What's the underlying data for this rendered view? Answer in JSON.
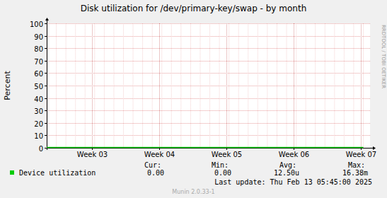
{
  "chart_data": {
    "type": "line",
    "title": "Disk utilization for /dev/primary-key/swap - by month",
    "y_label": "Percent",
    "x": [
      0,
      1,
      2,
      3,
      4,
      5,
      6,
      7,
      8,
      9,
      10,
      11,
      12,
      13,
      14,
      15,
      16,
      17,
      18,
      19,
      20,
      21,
      22,
      23,
      24,
      25,
      26,
      27,
      28,
      29,
      30,
      31,
      32,
      33
    ],
    "series": [
      {
        "name": "Device utilization",
        "color": "#00cc00",
        "values": [
          0,
          0,
          0,
          0,
          0,
          0,
          0,
          0,
          0,
          0,
          0,
          0,
          0,
          0,
          0,
          0,
          0,
          0,
          0,
          0,
          0,
          0,
          0,
          0,
          0,
          0,
          0,
          0,
          0,
          0,
          0,
          0,
          0,
          0
        ]
      }
    ],
    "xlim": [
      0,
      33.7
    ],
    "xticks": [
      {
        "value": 4.72,
        "label": "Week 03"
      },
      {
        "value": 11.72,
        "label": "Week 04"
      },
      {
        "value": 18.72,
        "label": "Week 05"
      },
      {
        "value": 25.72,
        "label": "Week 06"
      },
      {
        "value": 32.72,
        "label": "Week 07"
      }
    ],
    "ylim": [
      0,
      100
    ],
    "yticks": [
      0,
      10,
      20,
      30,
      40,
      50,
      60,
      70,
      80,
      90,
      100
    ],
    "grid": true,
    "summary_headers": [
      "Cur:",
      "Min:",
      "Avg:",
      "Max:"
    ],
    "summary_values": [
      "0.00",
      "0.00",
      "12.50u",
      "16.38m"
    ],
    "last_update": "Last update:  Thu Feb 13 05:45:00 2025",
    "footer": "Munin 2.0.33-1",
    "watermark": "RRDTOOL / TOBI OETIKER"
  }
}
